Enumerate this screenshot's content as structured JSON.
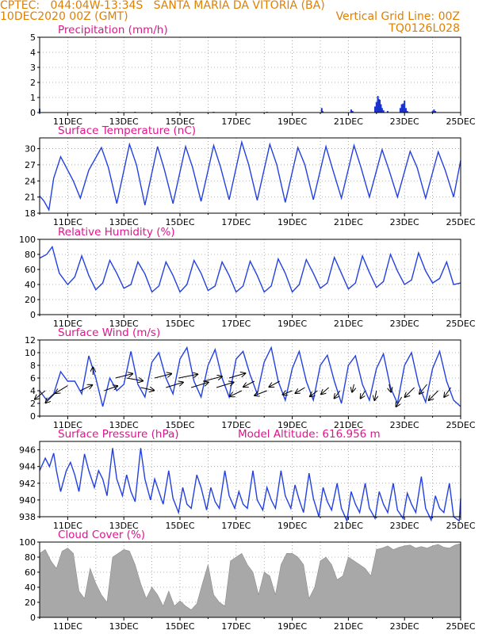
{
  "header": {
    "line1_left": "CPTEC:   044:04W-13:34S   SANTA MARIA DA VITORIA (BA)",
    "line2_left": "10DEC2020 00Z (GMT)",
    "line2_right": "Vertical Grid Line: 00Z",
    "line3_right": "TQ0126L028"
  },
  "colors": {
    "title": "#e0148c",
    "header": "#e08000",
    "line": "#2340e0",
    "bar": "#1a33cc",
    "cloud": "#a8a8a8"
  },
  "x_tick_labels": [
    "11DEC",
    "13DEC",
    "15DEC",
    "17DEC",
    "19DEC",
    "21DEC",
    "23DEC",
    "25DEC"
  ],
  "chart_data": [
    {
      "id": "precip",
      "type": "bar",
      "title": "Precipitation (mm/h)",
      "xlim": [
        10.0,
        25.0
      ],
      "ylim": [
        0,
        5
      ],
      "yticks": [
        0,
        1,
        2,
        3,
        4,
        5
      ],
      "x": [
        10.0,
        12.8,
        13.4,
        14.9,
        16.2,
        18.1,
        20.05,
        20.08,
        21.1,
        21.15,
        21.95,
        22.0,
        22.05,
        22.08,
        22.12,
        22.16,
        22.2,
        22.25,
        22.4,
        22.85,
        22.9,
        22.95,
        23.0,
        23.05,
        23.1,
        24.0,
        24.05,
        24.1
      ],
      "values": [
        0.25,
        0.05,
        0.05,
        0.05,
        0.05,
        0.05,
        0.3,
        0.1,
        0.2,
        0.1,
        0.4,
        0.7,
        1.1,
        0.9,
        0.85,
        0.55,
        0.3,
        0.15,
        0.1,
        0.3,
        0.55,
        0.6,
        0.8,
        0.3,
        0.1,
        0.1,
        0.2,
        0.1
      ]
    },
    {
      "id": "temp",
      "type": "line",
      "title": "Surface Temperature (nC)",
      "xlim": [
        10.0,
        25.0
      ],
      "ylim": [
        18,
        32
      ],
      "yticks": [
        18,
        21,
        24,
        27,
        30
      ],
      "x": [
        10.0,
        10.15,
        10.33,
        10.5,
        10.75,
        11.2,
        11.45,
        11.75,
        12.2,
        12.45,
        12.75,
        13.2,
        13.45,
        13.75,
        14.2,
        14.45,
        14.75,
        15.2,
        15.45,
        15.75,
        16.2,
        16.45,
        16.75,
        17.2,
        17.45,
        17.75,
        18.2,
        18.45,
        18.75,
        19.2,
        19.45,
        19.75,
        20.2,
        20.45,
        20.75,
        21.2,
        21.45,
        21.75,
        22.2,
        22.45,
        22.75,
        23.2,
        23.45,
        23.75,
        24.2,
        24.45,
        24.75,
        25.0
      ],
      "values": [
        21.2,
        20.3,
        18.6,
        24.5,
        28.5,
        24.0,
        20.8,
        26.0,
        30.2,
        26.5,
        19.8,
        30.8,
        27.0,
        19.5,
        30.4,
        26.0,
        19.8,
        30.4,
        26.5,
        20.2,
        30.6,
        26.5,
        20.5,
        31.2,
        27.0,
        20.4,
        30.8,
        27.0,
        20.0,
        30.2,
        27.0,
        20.5,
        30.4,
        26.0,
        20.8,
        30.6,
        26.5,
        21.0,
        29.8,
        26.0,
        21.0,
        29.5,
        26.5,
        20.8,
        29.4,
        26.0,
        21.0,
        27.8
      ]
    },
    {
      "id": "rh",
      "type": "line",
      "title": "Relative Humidity (%)",
      "xlim": [
        10.0,
        25.0
      ],
      "ylim": [
        0,
        100
      ],
      "yticks": [
        0,
        20,
        40,
        60,
        80,
        100
      ],
      "x": [
        10.0,
        10.25,
        10.45,
        10.7,
        11.0,
        11.25,
        11.5,
        11.75,
        12.0,
        12.25,
        12.5,
        12.75,
        13.0,
        13.25,
        13.5,
        13.75,
        14.0,
        14.25,
        14.5,
        14.75,
        15.0,
        15.25,
        15.5,
        15.75,
        16.0,
        16.25,
        16.5,
        16.75,
        17.0,
        17.25,
        17.5,
        17.75,
        18.0,
        18.25,
        18.5,
        18.75,
        19.0,
        19.25,
        19.5,
        19.75,
        20.0,
        20.25,
        20.5,
        20.75,
        21.0,
        21.25,
        21.5,
        21.75,
        22.0,
        22.25,
        22.5,
        22.75,
        23.0,
        23.25,
        23.5,
        23.75,
        24.0,
        24.25,
        24.5,
        24.75,
        25.0
      ],
      "values": [
        75,
        80,
        90,
        55,
        40,
        50,
        78,
        52,
        33,
        42,
        72,
        55,
        35,
        40,
        70,
        54,
        30,
        38,
        70,
        52,
        30,
        40,
        72,
        55,
        32,
        38,
        70,
        52,
        30,
        38,
        71,
        52,
        30,
        38,
        74,
        55,
        30,
        40,
        73,
        55,
        35,
        42,
        76,
        55,
        34,
        42,
        78,
        56,
        36,
        44,
        80,
        58,
        40,
        46,
        82,
        58,
        42,
        48,
        70,
        40,
        42
      ]
    },
    {
      "id": "wind",
      "type": "line",
      "title": "Surface Wind (m/s)",
      "xlim": [
        10.0,
        25.0
      ],
      "ylim": [
        0,
        12
      ],
      "yticks": [
        0,
        2,
        4,
        6,
        8,
        10,
        12
      ],
      "x": [
        10.0,
        10.25,
        10.5,
        10.75,
        11.0,
        11.25,
        11.5,
        11.75,
        12.0,
        12.25,
        12.5,
        12.75,
        13.0,
        13.25,
        13.5,
        13.75,
        14.0,
        14.25,
        14.5,
        14.75,
        15.0,
        15.25,
        15.5,
        15.75,
        16.0,
        16.25,
        16.5,
        16.75,
        17.0,
        17.25,
        17.5,
        17.75,
        18.0,
        18.25,
        18.5,
        18.75,
        19.0,
        19.25,
        19.5,
        19.75,
        20.0,
        20.25,
        20.5,
        20.75,
        21.0,
        21.25,
        21.5,
        21.75,
        22.0,
        22.25,
        22.5,
        22.75,
        23.0,
        23.25,
        23.5,
        23.75,
        24.0,
        24.25,
        24.5,
        24.75,
        25.0
      ],
      "values": [
        4.0,
        2.5,
        3.5,
        7.0,
        5.5,
        5.5,
        3.5,
        9.5,
        6.0,
        1.5,
        6.0,
        4.0,
        5.0,
        10.2,
        5.0,
        3.0,
        8.5,
        10.0,
        6.0,
        3.5,
        9.0,
        10.8,
        5.5,
        3.0,
        8.0,
        10.5,
        6.0,
        3.0,
        9.0,
        10.2,
        6.5,
        3.5,
        8.5,
        10.8,
        5.5,
        2.5,
        7.5,
        10.2,
        5.5,
        2.5,
        8.0,
        9.6,
        5.5,
        2.0,
        8.0,
        9.5,
        5.0,
        2.5,
        7.5,
        9.8,
        4.5,
        2.0,
        8.0,
        10.0,
        5.0,
        2.2,
        7.5,
        10.2,
        5.5,
        2.5,
        1.5
      ],
      "wind_vectors": {
        "x": [
          10.2,
          10.55,
          11.0,
          11.45,
          11.9,
          12.3,
          12.7,
          13.1,
          13.6,
          14.1,
          14.5,
          14.95,
          15.4,
          15.85,
          16.3,
          16.75,
          17.2,
          17.65,
          18.1,
          18.55,
          19.0,
          19.45,
          19.9,
          20.3,
          20.7,
          21.2,
          21.6,
          22.0,
          22.45,
          22.9,
          23.35,
          23.8,
          24.2,
          24.65
        ],
        "y": [
          4.0,
          3.6,
          4.8,
          4.0,
          6.5,
          4.0,
          6.0,
          6.0,
          4.5,
          6.0,
          4.5,
          6.0,
          4.5,
          5.5,
          4.5,
          6.0,
          4.0,
          5.5,
          4.0,
          5.5,
          4.0,
          4.5,
          4.0,
          4.5,
          4.0,
          5.0,
          4.0,
          4.0,
          5.0,
          3.0,
          4.5,
          5.0,
          4.0,
          4.5
        ],
        "u": [
          -2.2,
          -2.0,
          -2.6,
          2.5,
          0.0,
          2.8,
          3.6,
          3.4,
          2.8,
          3.5,
          3.6,
          4.0,
          3.6,
          3.8,
          3.6,
          3.4,
          -2.5,
          -2.3,
          -2.6,
          -2.2,
          -2.0,
          -2.0,
          -1.6,
          -1.6,
          -1.2,
          -0.4,
          -1.0,
          -0.4,
          0.4,
          -1.2,
          -2.0,
          -1.6,
          -2.0,
          -1.4
        ],
        "v": [
          -1.8,
          -2.0,
          -1.6,
          1.2,
          1.6,
          1.0,
          0.9,
          -0.6,
          -0.6,
          0.9,
          1.1,
          0.8,
          1.1,
          1.0,
          1.1,
          1.0,
          -1.2,
          -1.2,
          -1.0,
          -1.2,
          -0.8,
          -1.2,
          -1.2,
          -1.4,
          -1.6,
          -1.6,
          -1.6,
          -2.0,
          -1.6,
          -2.0,
          -2.0,
          -2.0,
          -2.0,
          -2.0
        ]
      }
    },
    {
      "id": "press",
      "type": "line",
      "title": "Surface Pressure (hPa)",
      "annotation": "Model Altitude: 616.956 m",
      "xlim": [
        10.0,
        25.0
      ],
      "ylim": [
        938,
        947
      ],
      "yticks": [
        938,
        940,
        942,
        944,
        946
      ],
      "x": [
        10.0,
        10.2,
        10.35,
        10.5,
        10.6,
        10.75,
        10.95,
        11.1,
        11.25,
        11.4,
        11.6,
        11.75,
        11.95,
        12.1,
        12.25,
        12.4,
        12.6,
        12.75,
        12.95,
        13.1,
        13.25,
        13.4,
        13.6,
        13.75,
        13.95,
        14.1,
        14.25,
        14.4,
        14.6,
        14.75,
        14.95,
        15.1,
        15.25,
        15.4,
        15.6,
        15.75,
        15.95,
        16.1,
        16.25,
        16.4,
        16.6,
        16.75,
        16.95,
        17.1,
        17.25,
        17.4,
        17.6,
        17.75,
        17.95,
        18.1,
        18.25,
        18.4,
        18.6,
        18.75,
        18.95,
        19.1,
        19.25,
        19.4,
        19.6,
        19.75,
        19.95,
        20.1,
        20.25,
        20.4,
        20.6,
        20.75,
        20.95,
        21.1,
        21.25,
        21.4,
        21.6,
        21.75,
        21.95,
        22.1,
        22.25,
        22.4,
        22.6,
        22.75,
        22.95,
        23.1,
        23.25,
        23.4,
        23.6,
        23.75,
        23.95,
        24.1,
        24.25,
        24.4,
        24.6,
        24.75,
        24.95,
        25.0
      ],
      "values": [
        943.5,
        945.0,
        944.0,
        945.6,
        943.5,
        941.0,
        943.5,
        944.5,
        943.0,
        941.0,
        945.5,
        943.5,
        941.5,
        943.5,
        942.5,
        940.5,
        946.2,
        942.5,
        940.5,
        943.0,
        941.0,
        939.8,
        946.2,
        942.5,
        940.0,
        942.5,
        941.0,
        939.5,
        943.5,
        940.2,
        938.5,
        941.5,
        939.5,
        939.0,
        943.0,
        941.5,
        938.8,
        941.5,
        939.8,
        939.0,
        943.5,
        940.5,
        939.0,
        941.0,
        939.5,
        939.0,
        943.5,
        940.0,
        938.8,
        941.5,
        940.0,
        939.0,
        943.5,
        940.5,
        939.0,
        941.8,
        940.0,
        938.5,
        943.2,
        940.2,
        938.0,
        941.5,
        939.8,
        938.8,
        942.0,
        939.0,
        937.5,
        941.0,
        939.5,
        938.5,
        942.0,
        939.0,
        937.8,
        941.0,
        939.5,
        938.5,
        942.0,
        938.8,
        937.8,
        940.8,
        939.5,
        938.5,
        942.8,
        939.0,
        937.6,
        940.5,
        939.0,
        938.5,
        942.0,
        938.0,
        937.5,
        940.2
      ]
    },
    {
      "id": "cloud",
      "type": "bar",
      "title": "Cloud Cover (%)",
      "xlim": [
        10.0,
        25.0
      ],
      "ylim": [
        0,
        100
      ],
      "yticks": [
        0,
        20,
        40,
        60,
        80,
        100
      ],
      "x": [
        10.0,
        10.2,
        10.4,
        10.6,
        10.8,
        11.0,
        11.2,
        11.4,
        11.6,
        11.8,
        12.0,
        12.2,
        12.4,
        12.6,
        12.8,
        13.0,
        13.2,
        13.4,
        13.6,
        13.8,
        14.0,
        14.2,
        14.4,
        14.6,
        14.8,
        15.0,
        15.2,
        15.4,
        15.6,
        15.8,
        16.0,
        16.2,
        16.4,
        16.6,
        16.8,
        17.0,
        17.2,
        17.4,
        17.6,
        17.8,
        18.0,
        18.2,
        18.4,
        18.6,
        18.8,
        19.0,
        19.2,
        19.4,
        19.6,
        19.8,
        20.0,
        20.2,
        20.4,
        20.6,
        20.8,
        21.0,
        21.2,
        21.4,
        21.6,
        21.8,
        22.0,
        22.2,
        22.4,
        22.6,
        22.8,
        23.0,
        23.2,
        23.4,
        23.6,
        23.8,
        24.0,
        24.2,
        24.4,
        24.6,
        24.8,
        25.0
      ],
      "values": [
        85,
        90,
        75,
        65,
        88,
        92,
        85,
        35,
        25,
        65,
        45,
        30,
        20,
        80,
        85,
        90,
        88,
        70,
        45,
        25,
        40,
        30,
        15,
        35,
        15,
        22,
        15,
        10,
        18,
        45,
        70,
        30,
        20,
        15,
        75,
        80,
        85,
        70,
        60,
        30,
        60,
        55,
        30,
        70,
        85,
        85,
        80,
        70,
        25,
        40,
        75,
        80,
        70,
        50,
        55,
        80,
        75,
        70,
        65,
        55,
        90,
        92,
        95,
        90,
        93,
        95,
        96,
        92,
        94,
        92,
        95,
        97,
        93,
        92,
        96,
        98
      ]
    }
  ]
}
